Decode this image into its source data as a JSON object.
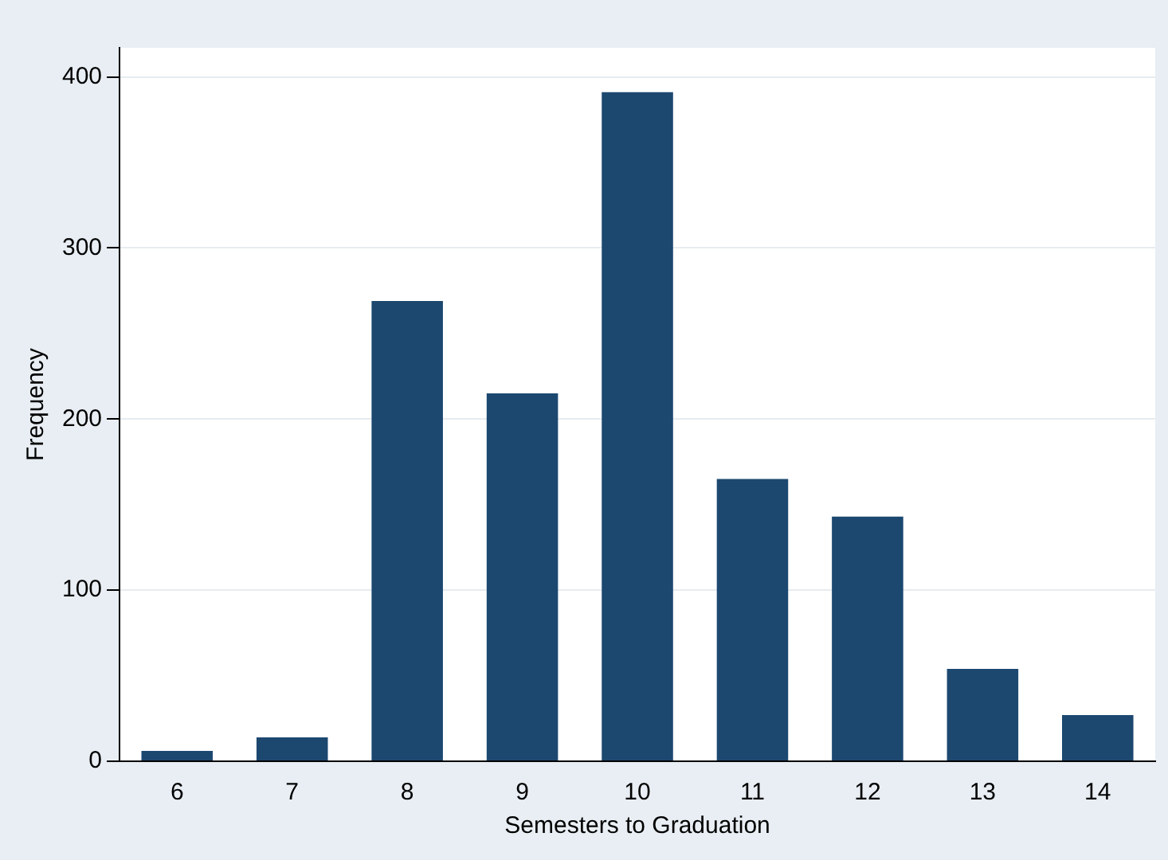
{
  "chart_data": {
    "type": "bar",
    "xlabel": "Semesters to Graduation",
    "ylabel": "Frequency",
    "categories": [
      "6",
      "7",
      "8",
      "9",
      "10",
      "11",
      "12",
      "13",
      "14"
    ],
    "values": [
      6,
      14,
      269,
      215,
      391,
      165,
      143,
      54,
      27
    ],
    "color": "#1c4870",
    "ylim": [
      0,
      417
    ],
    "yticks": [
      0,
      100,
      200,
      300,
      400
    ],
    "grid": "y"
  }
}
